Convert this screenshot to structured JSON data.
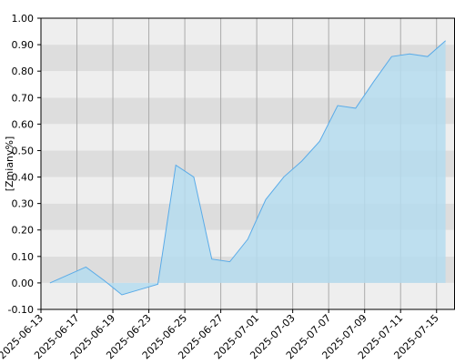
{
  "chart_data": {
    "type": "area",
    "y_label": "[Zmiany%]",
    "categories": [
      "2025-06-13",
      null,
      "2025-06-17",
      null,
      "2025-06-19",
      null,
      "2025-06-23",
      null,
      "2025-06-25",
      null,
      "2025-06-27",
      null,
      "2025-07-01",
      null,
      "2025-07-03",
      null,
      "2025-07-07",
      null,
      "2025-07-09",
      null,
      "2025-07-11",
      null,
      "2025-07-15"
    ],
    "values": [
      0.0,
      0.03,
      0.06,
      0.01,
      -0.045,
      -0.025,
      -0.005,
      0.445,
      0.4,
      0.09,
      0.08,
      0.165,
      0.315,
      0.4,
      0.46,
      0.535,
      0.67,
      0.66,
      0.76,
      0.855,
      0.865,
      0.855,
      0.915
    ],
    "color": "#5aabe8",
    "fill": "#b5dcef",
    "ylim": [
      -0.1,
      1.0
    ],
    "yticks": [
      {
        "value": -0.1,
        "label": "-0.10"
      },
      {
        "value": 0,
        "label": "0.00"
      },
      {
        "value": 0.1,
        "label": "0.10"
      },
      {
        "value": 0.2,
        "label": "0.20"
      },
      {
        "value": 0.3,
        "label": "0.30"
      },
      {
        "value": 0.4,
        "label": "0.40"
      },
      {
        "value": 0.5,
        "label": "0.50"
      },
      {
        "value": 0.6,
        "label": "0.60"
      },
      {
        "value": 0.7,
        "label": "0.70"
      },
      {
        "value": 0.8,
        "label": "0.80"
      },
      {
        "value": 0.9,
        "label": "0.90"
      },
      {
        "value": 1.0,
        "label": "1.00"
      }
    ],
    "grid": true
  }
}
